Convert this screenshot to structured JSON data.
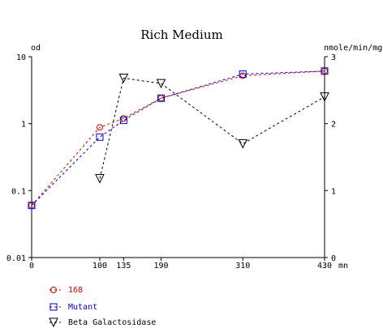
{
  "chart_data": {
    "type": "line",
    "title": "Rich Medium",
    "x_unit": "mn",
    "x_ticks": [
      0,
      100,
      135,
      190,
      310,
      430
    ],
    "xlim": [
      0,
      430
    ],
    "left_axis": {
      "label": "od",
      "scale": "log",
      "ylim": [
        0.01,
        10
      ],
      "ticks": [
        0.01,
        0.1,
        1,
        10
      ],
      "tick_labels": [
        "0.01",
        "0.1",
        "1",
        "10"
      ]
    },
    "right_axis": {
      "label": "nmole/min/mg",
      "scale": "linear",
      "ylim": [
        0,
        3
      ],
      "ticks": [
        0,
        1,
        2,
        3
      ],
      "tick_labels": [
        "0",
        "1",
        "2",
        "3"
      ]
    },
    "legend_position": "bottom-left",
    "grid": false,
    "series": [
      {
        "name": "168",
        "axis": "left",
        "marker": "circle",
        "color": "#cc0000",
        "x": [
          0,
          100,
          135,
          190,
          310,
          430
        ],
        "y": [
          0.06,
          0.88,
          1.2,
          2.4,
          5.2,
          6.1
        ]
      },
      {
        "name": "Mutant",
        "axis": "left",
        "marker": "square",
        "color": "#0000cc",
        "x": [
          0,
          100,
          135,
          190,
          310,
          430
        ],
        "y": [
          0.06,
          0.63,
          1.12,
          2.4,
          5.5,
          6.1
        ]
      },
      {
        "name": "Beta Galactosidase",
        "axis": "right",
        "marker": "triangle-down",
        "color": "#000000",
        "x": [
          100,
          135,
          190,
          310,
          430
        ],
        "y": [
          1.18,
          2.68,
          2.6,
          1.7,
          2.4
        ]
      }
    ]
  }
}
